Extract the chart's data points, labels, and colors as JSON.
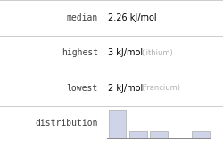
{
  "rows": [
    {
      "label": "median",
      "value": "2.26 kJ/mol",
      "value_color": "#000000",
      "note": "",
      "note_color": ""
    },
    {
      "label": "highest",
      "value": "3 kJ/mol",
      "value_color": "#000000",
      "note": "(lithium)",
      "note_color": "#b0b0b0"
    },
    {
      "label": "lowest",
      "value": "2 kJ/mol",
      "value_color": "#000000",
      "note": "(francium)",
      "note_color": "#b0b0b0"
    },
    {
      "label": "distribution",
      "value": "",
      "value_color": "",
      "note": "",
      "note_color": ""
    }
  ],
  "label_color": "#404040",
  "label_font": "monospace",
  "grid_color": "#cccccc",
  "hist_bar_color": "#d0d4e8",
  "hist_bar_edge": "#aaaaaa",
  "hist_heights": [
    4,
    1,
    1,
    0,
    1
  ],
  "background_color": "#ffffff",
  "col_split": 0.46,
  "font_size": 7.0,
  "note_font_size": 6.0
}
